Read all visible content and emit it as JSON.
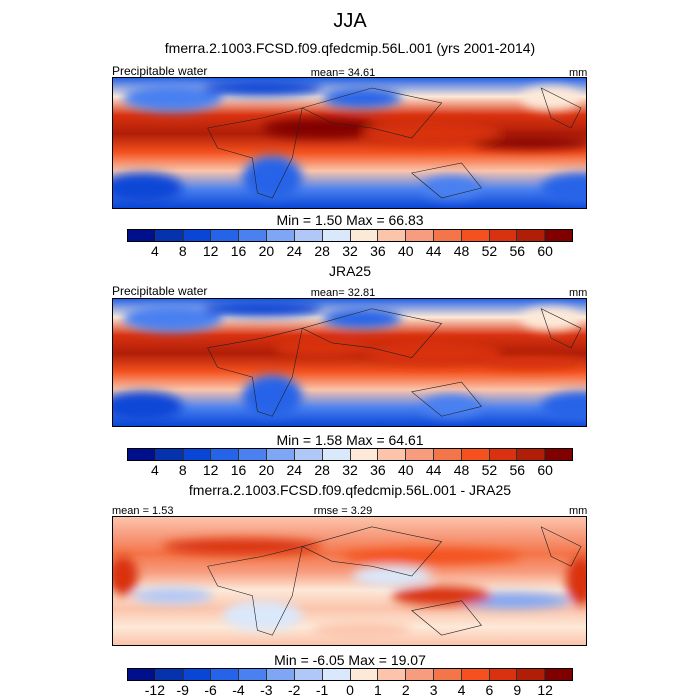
{
  "title": "JJA",
  "subtitle": "fmerra.2.1003.FCSD.f09.qfedcmip.56L.001 (yrs 2001-2014)",
  "colors": [
    "#000f8c",
    "#0433ad",
    "#0a46d6",
    "#2563e8",
    "#4a80f0",
    "#7fa6f5",
    "#b0c8f8",
    "#dae8fc",
    "#fde9d8",
    "#fbc4ab",
    "#f79c7e",
    "#f47549",
    "#f4511e",
    "#d93210",
    "#b01e08",
    "#800000"
  ],
  "panels": [
    {
      "left": "Precipitable water",
      "center": "mean=  34.61",
      "right": "mm",
      "minmax": "Min =   1.50 Max =  66.83",
      "ticks": [
        "4",
        "8",
        "12",
        "16",
        "20",
        "24",
        "28",
        "32",
        "36",
        "40",
        "44",
        "48",
        "52",
        "56",
        "60"
      ]
    },
    {
      "title": "JRA25",
      "left": "Precipitable water",
      "center": "mean=  32.81",
      "right": "mm",
      "minmax": "Min =   1.58 Max =  64.61",
      "ticks": [
        "4",
        "8",
        "12",
        "16",
        "20",
        "24",
        "28",
        "32",
        "36",
        "40",
        "44",
        "48",
        "52",
        "56",
        "60"
      ]
    },
    {
      "title": "fmerra.2.1003.FCSD.f09.qfedcmip.56L.001 - JRA25",
      "left": "mean =  1.53",
      "center": "rmse =   3.29",
      "right": "mm",
      "minmax": "Min =  -6.05 Max =  19.07",
      "ticks": [
        "-12",
        "-9",
        "-6",
        "-4",
        "-3",
        "-2",
        "-1",
        "0",
        "1",
        "2",
        "3",
        "4",
        "6",
        "9",
        "12"
      ]
    }
  ]
}
